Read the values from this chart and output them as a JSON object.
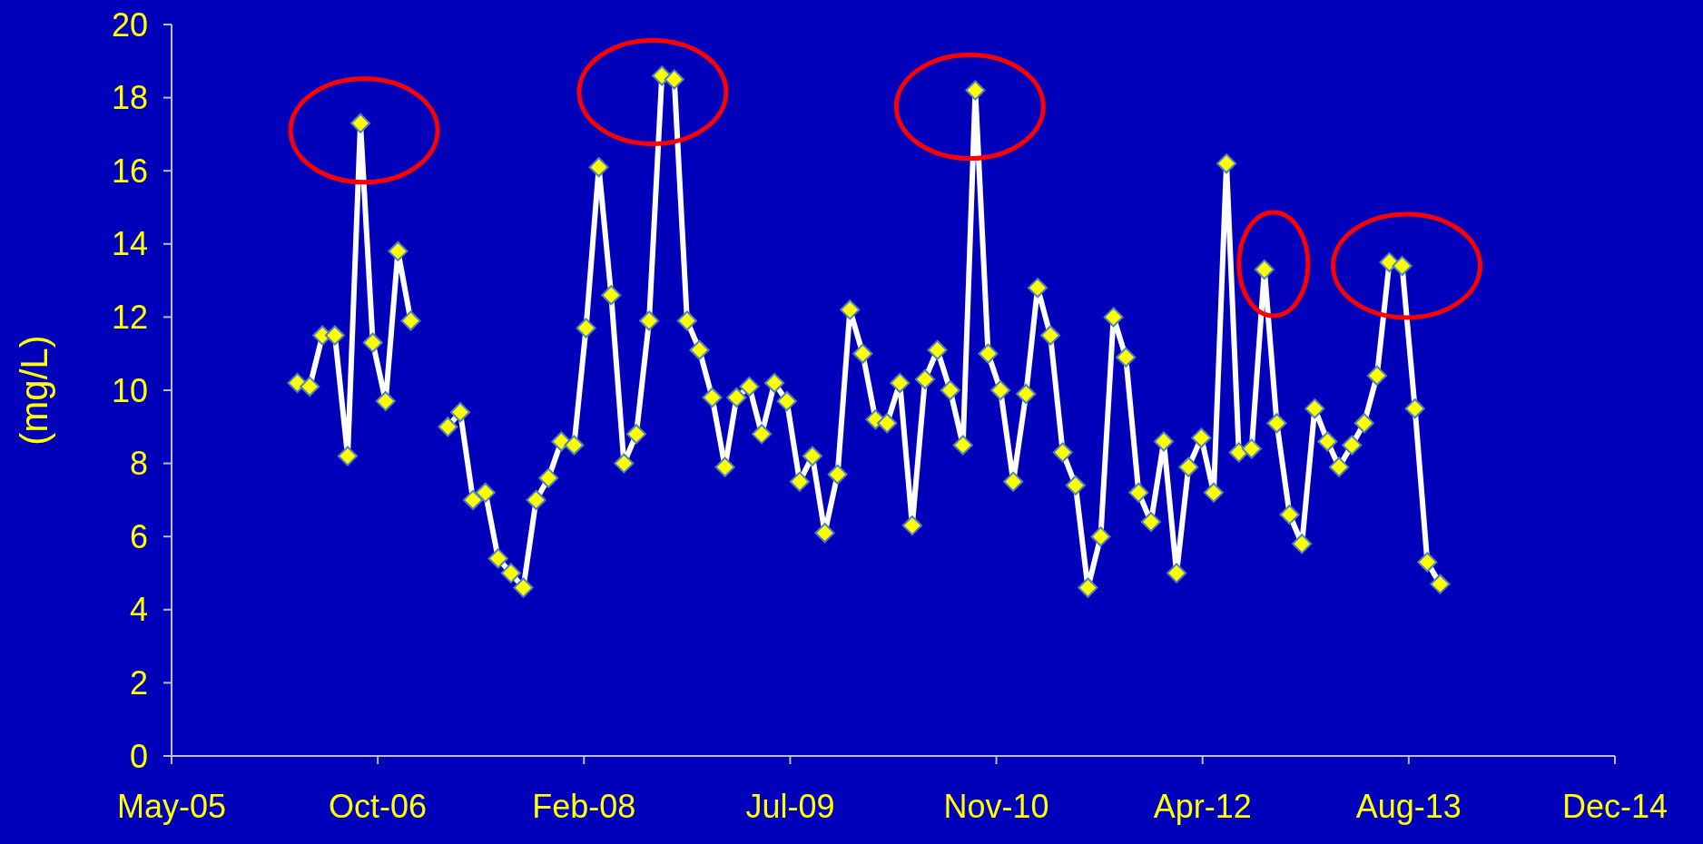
{
  "chart_data": {
    "type": "line",
    "ylabel": "(mg/L)",
    "x": [
      "2006-04",
      "2006-05",
      "2006-06",
      "2006-07",
      "2006-08",
      "2006-09",
      "2006-10",
      "2006-11",
      "2006-12",
      "2007-01",
      "2007-02",
      "2007-03",
      "2007-04",
      "2007-05",
      "2007-06",
      "2007-07",
      "2007-08",
      "2007-09",
      "2007-10",
      "2007-11",
      "2007-12",
      "2008-01",
      "2008-02",
      "2008-03",
      "2008-04",
      "2008-05",
      "2008-06",
      "2008-07",
      "2008-08",
      "2008-09",
      "2008-10",
      "2008-11",
      "2008-12",
      "2009-01",
      "2009-02",
      "2009-03",
      "2009-04",
      "2009-05",
      "2009-06",
      "2009-07",
      "2009-08",
      "2009-09",
      "2009-10",
      "2009-11",
      "2009-12",
      "2010-01",
      "2010-02",
      "2010-03",
      "2010-04",
      "2010-05",
      "2010-06",
      "2010-07",
      "2010-08",
      "2010-09",
      "2010-10",
      "2010-11",
      "2010-12",
      "2011-01",
      "2011-02",
      "2011-03",
      "2011-04",
      "2011-05",
      "2011-06",
      "2011-07",
      "2011-08",
      "2011-09",
      "2011-10",
      "2011-11",
      "2011-12",
      "2012-01",
      "2012-02",
      "2012-03",
      "2012-04",
      "2012-05",
      "2012-06",
      "2012-07",
      "2012-08",
      "2012-09",
      "2012-10",
      "2012-11",
      "2012-12",
      "2013-01",
      "2013-02",
      "2013-03",
      "2013-04",
      "2013-05",
      "2013-06",
      "2013-07",
      "2013-08",
      "2013-09",
      "2013-10",
      "2013-11"
    ],
    "series": [
      {
        "color": "#ffffff",
        "values": [
          10.2,
          10.1,
          11.5,
          11.5,
          8.2,
          17.3,
          11.3,
          9.7,
          13.8,
          11.9,
          null,
          null,
          9.0,
          9.4,
          7.0,
          7.2,
          5.4,
          5.0,
          4.6,
          7.0,
          7.6,
          8.6,
          8.5,
          11.7,
          16.1,
          12.6,
          8.0,
          8.8,
          11.9,
          18.6,
          18.5,
          11.9,
          11.1,
          9.8,
          7.9,
          9.8,
          10.1,
          8.8,
          10.2,
          9.7,
          7.5,
          8.2,
          6.1,
          7.7,
          12.2,
          11.0,
          9.2,
          9.1,
          10.2,
          6.3,
          10.3,
          11.1,
          10.0,
          8.5,
          18.2,
          11.0,
          10.0,
          7.5,
          9.9,
          12.8,
          11.5,
          8.3,
          7.4,
          4.6,
          6.0,
          12.0,
          10.9,
          7.2,
          6.4,
          8.6,
          5.0,
          7.9,
          8.7,
          7.2,
          16.2,
          8.3,
          8.4,
          13.3,
          9.1,
          6.6,
          5.8,
          9.5,
          8.6,
          7.9,
          8.5,
          9.1,
          10.4,
          13.5,
          13.4,
          9.5,
          5.3,
          4.7
        ]
      }
    ],
    "xlim": [
      "2005-05-31",
      "2014-12-30"
    ],
    "xticks": [
      {
        "value": "2005-05-31",
        "label": "May-05"
      },
      {
        "value": "2006-10-13",
        "label": "Oct-06"
      },
      {
        "value": "2008-02-25",
        "label": "Feb-08"
      },
      {
        "value": "2009-07-09",
        "label": "Jul-09"
      },
      {
        "value": "2010-11-21",
        "label": "Nov-10"
      },
      {
        "value": "2012-04-04",
        "label": "Apr-12"
      },
      {
        "value": "2013-08-17",
        "label": "Aug-13"
      },
      {
        "value": "2014-12-30",
        "label": "Dec-14"
      }
    ],
    "ylim": [
      0,
      20
    ],
    "yticks": [
      0,
      2,
      4,
      6,
      8,
      10,
      12,
      14,
      16,
      18,
      20
    ],
    "grid": false,
    "marker": "diamond",
    "line_style": "solid"
  }
}
